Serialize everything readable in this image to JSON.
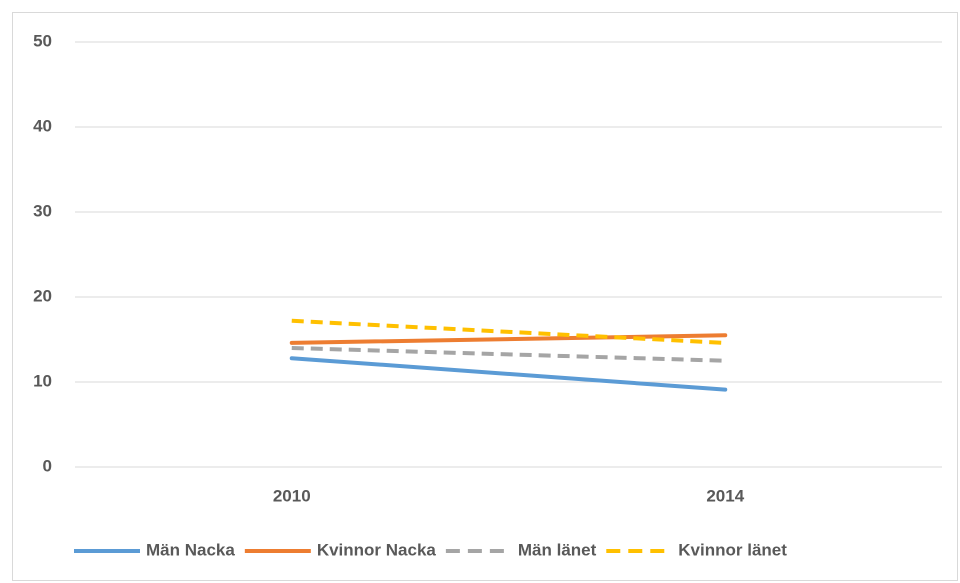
{
  "chart_data": {
    "type": "line",
    "categories": [
      "2010",
      "2014"
    ],
    "series": [
      {
        "name": "Män Nacka",
        "color": "#5b9bd5",
        "dashed": false,
        "values": [
          12.8,
          9.1
        ]
      },
      {
        "name": "Kvinnor Nacka",
        "color": "#ed7d31",
        "dashed": false,
        "values": [
          14.6,
          15.5
        ]
      },
      {
        "name": "Män länet",
        "color": "#a5a5a5",
        "dashed": true,
        "values": [
          14.0,
          12.5
        ]
      },
      {
        "name": "Kvinnor länet",
        "color": "#ffc000",
        "dashed": true,
        "values": [
          17.2,
          14.6
        ]
      }
    ],
    "ylim": [
      0,
      50
    ],
    "yticks": [
      0,
      10,
      20,
      30,
      40,
      50
    ],
    "grid": true,
    "legend": "bottom"
  }
}
